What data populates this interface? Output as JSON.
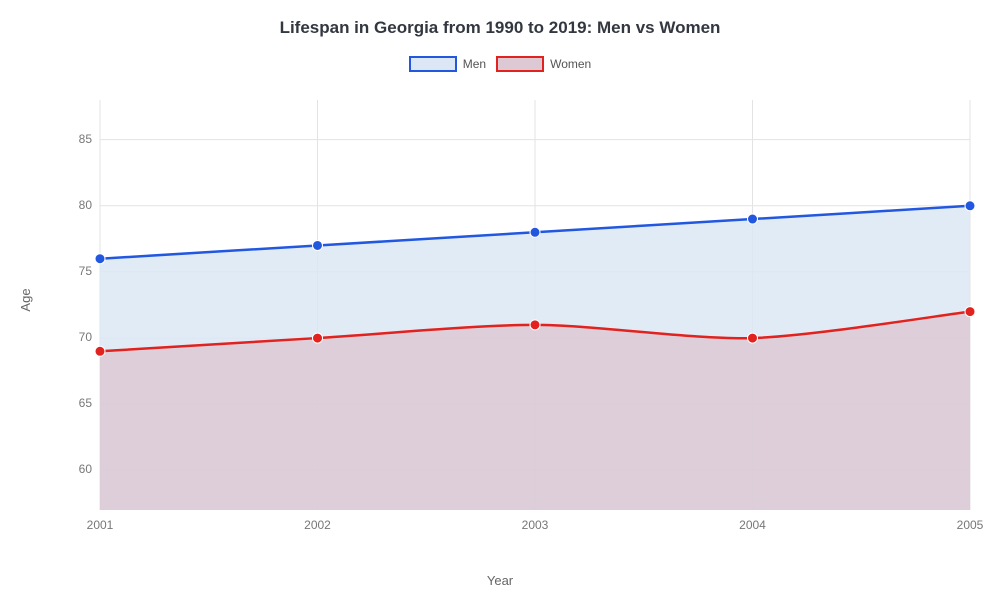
{
  "chart": {
    "type": "line-area",
    "title": "Lifespan in Georgia from 1990 to 2019: Men vs Women",
    "title_fontsize": 17,
    "title_color": "#333740",
    "background_color": "#ffffff",
    "plot_background": "#ffffff",
    "x": {
      "label": "Year",
      "categories": [
        "2001",
        "2002",
        "2003",
        "2004",
        "2005"
      ],
      "label_fontsize": 13,
      "tick_fontsize": 12,
      "tick_color": "#777777"
    },
    "y": {
      "label": "Age",
      "min": 57,
      "max": 88,
      "ticks": [
        60,
        65,
        70,
        75,
        80,
        85
      ],
      "label_fontsize": 13,
      "tick_fontsize": 12,
      "tick_color": "#777777"
    },
    "grid_color": "#e3e3e3",
    "grid_width": 1,
    "series": [
      {
        "name": "Men",
        "values": [
          76,
          77,
          78,
          79,
          80
        ],
        "line_color": "#2257e0",
        "line_width": 2.5,
        "marker": "circle",
        "marker_size": 5,
        "marker_fill": "#2257e0",
        "fill_color": "#dbe7f5",
        "fill_opacity": 0.85
      },
      {
        "name": "Women",
        "values": [
          69,
          70,
          71,
          70,
          72
        ],
        "line_color": "#e1221e",
        "line_width": 2.5,
        "marker": "circle",
        "marker_size": 5,
        "marker_fill": "#e1221e",
        "fill_color": "#dcc9d3",
        "fill_opacity": 0.85
      }
    ],
    "legend": {
      "position": "top-center",
      "swatch_width": 48,
      "swatch_height": 16,
      "fontsize": 12
    },
    "curve_tension": 0.4
  }
}
